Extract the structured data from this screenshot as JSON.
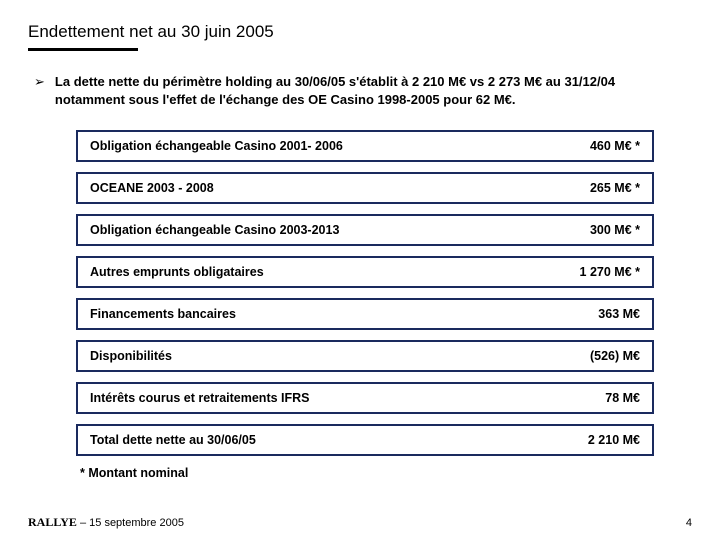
{
  "title": "Endettement net au 30 juin 2005",
  "bullet": "La dette nette du périmètre holding au 30/06/05 s'établit à 2 210 M€ vs 2 273 M€ au 31/12/04 notamment sous l'effet de l'échange des OE Casino 1998-2005 pour 62 M€.",
  "rows": [
    {
      "label": "Obligation échangeable Casino 2001- 2006",
      "value": "460 M€ *"
    },
    {
      "label": "OCEANE 2003 - 2008",
      "value": "265 M€ *"
    },
    {
      "label": "Obligation échangeable Casino 2003-2013",
      "value": "300 M€ *"
    },
    {
      "label": "Autres emprunts obligataires",
      "value": "1 270 M€ *"
    },
    {
      "label": "Financements bancaires",
      "value": "363 M€"
    },
    {
      "label": "Disponibilités",
      "value": "(526) M€"
    },
    {
      "label": "Intérêts courus et retraitements IFRS",
      "value": "78 M€"
    },
    {
      "label": "Total dette nette au 30/06/05",
      "value": "2 210 M€"
    }
  ],
  "footnote": "* Montant nominal",
  "footer": {
    "brand": "RALLYE",
    "date": " – 15 septembre 2005",
    "page": "4"
  },
  "style": {
    "border_color": "#1a2a5e",
    "background": "#ffffff",
    "title_fontsize": 17,
    "body_fontsize": 13,
    "row_fontsize": 12.5
  }
}
